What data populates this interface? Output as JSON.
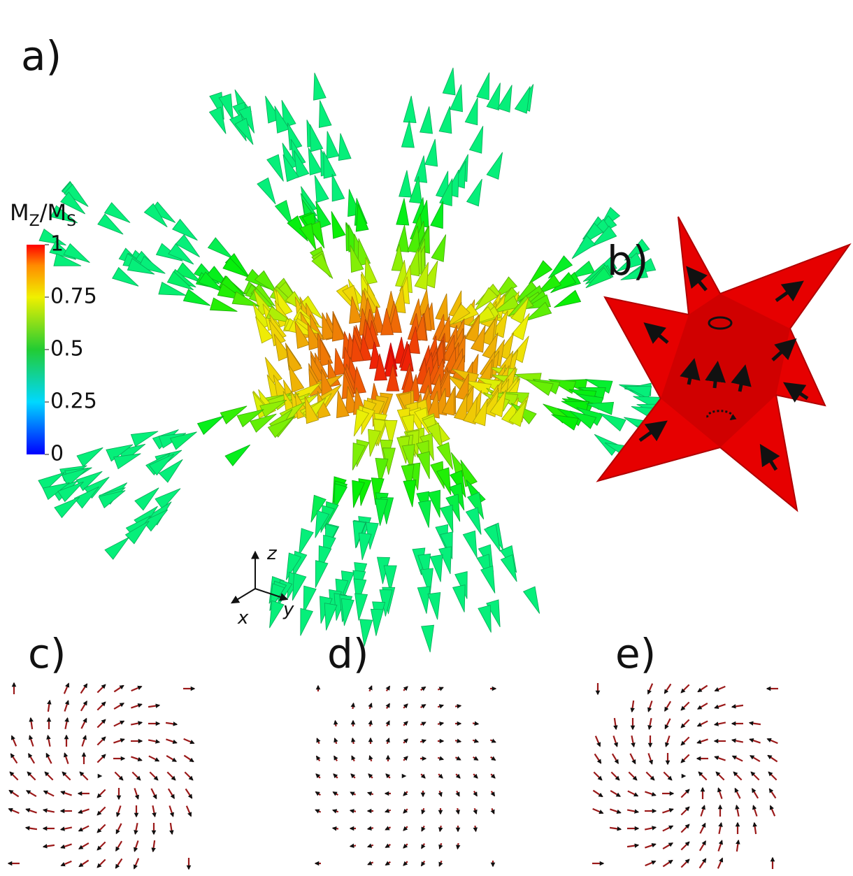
{
  "panels": {
    "a": "a)",
    "b": "b)",
    "c": "c)",
    "d": "d)",
    "e": "e)"
  },
  "colorbar": {
    "title": {
      "m1": "M",
      "sub1": "Z",
      "m2": "/M",
      "sub2": "S"
    },
    "ticks": [
      1,
      0.75,
      0.5,
      0.25,
      0
    ],
    "lim": [
      0,
      1
    ]
  },
  "axes": {
    "z": "z",
    "x": "x",
    "y": "y"
  }
}
